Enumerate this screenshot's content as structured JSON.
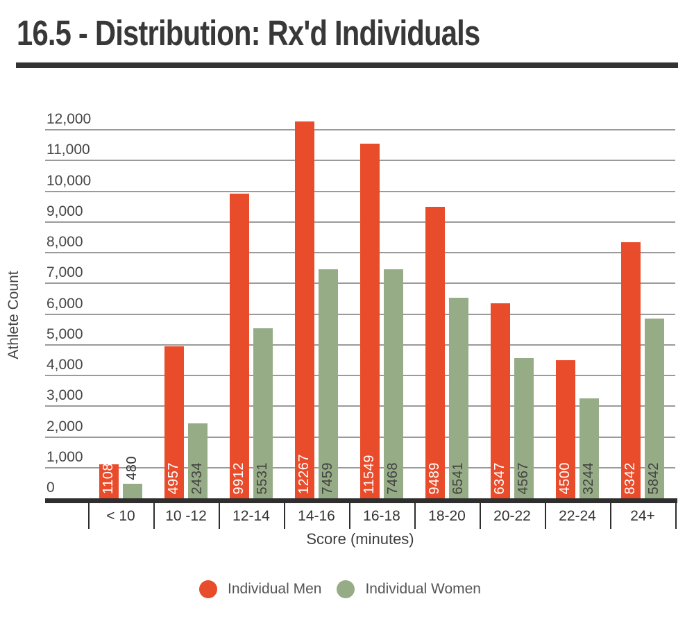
{
  "page": {
    "title": "16.5 - Distribution: Rx'd Individuals"
  },
  "chart_data": {
    "type": "bar",
    "title": "16.5 - Distribution: Rx'd Individuals",
    "categories": [
      "< 10",
      "10 -12",
      "12-14",
      "14-16",
      "16-18",
      "18-20",
      "20-22",
      "22-24",
      "24+"
    ],
    "series": [
      {
        "name": "Individual Men",
        "color": "#e84c2b",
        "label_color": "#ffffff",
        "values": [
          1108,
          4957,
          9912,
          12267,
          11549,
          9489,
          6347,
          4500,
          8342
        ]
      },
      {
        "name": "Individual Women",
        "color": "#96ac86",
        "label_color": "#404040",
        "values": [
          480,
          2434,
          5531,
          7459,
          7468,
          6541,
          4567,
          3244,
          5842
        ]
      }
    ],
    "outside_label_color": "#2f2f2f",
    "xlabel": "Score (minutes)",
    "ylabel": "Athlete Count",
    "ylim": [
      0,
      12267
    ],
    "yticks": [
      0,
      1000,
      2000,
      3000,
      4000,
      5000,
      6000,
      7000,
      8000,
      9000,
      10000,
      11000,
      12000
    ],
    "grid": true,
    "legend_position": "bottom",
    "value_labels": "rotated-vertical-at-bar-base"
  }
}
